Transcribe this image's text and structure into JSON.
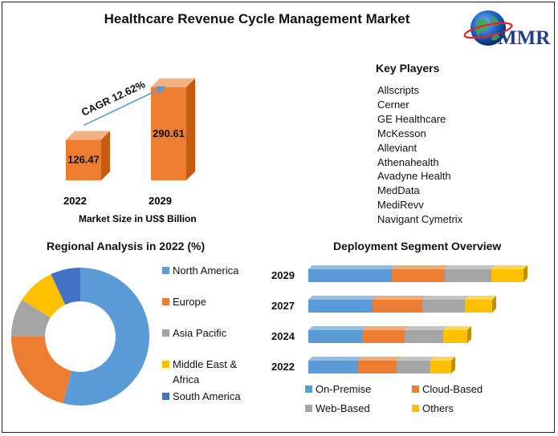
{
  "page": {
    "title": "Healthcare Revenue Cycle Management Market"
  },
  "logo": {
    "text": "MMR"
  },
  "key_players": {
    "title": "Key Players",
    "items": [
      "Allscripts",
      "Cerner",
      "GE Healthcare",
      "McKesson",
      "Alleviant",
      "Athenahealth",
      "Avadyne Health",
      "MedData",
      "MediRevv",
      "Navigant Cymetrix"
    ]
  },
  "colors": {
    "bar_orange": "#ED7D31",
    "bar_orange_dark": "#C55A11",
    "blue": "#5B9BD5",
    "orange": "#ED7D31",
    "gray": "#A5A5A5",
    "yellow": "#FFC000",
    "dark_blue": "#4472C4"
  },
  "chart_data": [
    {
      "type": "bar",
      "categories": [
        "2022",
        "2029"
      ],
      "values": [
        126.47,
        290.61
      ],
      "data_labels": [
        "126.47",
        "290.61"
      ],
      "annotation": "CAGR 12.62%",
      "xlabel": "Market Size in US$ Billion",
      "ylabel": ""
    },
    {
      "type": "pie",
      "title": "Regional Analysis in 2022 (%)",
      "categories": [
        "North America",
        "Europe",
        "Asia Pacific",
        "Middle East & Africa",
        "South America"
      ],
      "values": [
        54,
        21,
        9,
        9,
        7
      ],
      "legend_position": "right"
    },
    {
      "type": "bar",
      "orientation": "horizontal",
      "stacked": true,
      "title": "Deployment Segment Overview",
      "categories": [
        "2029",
        "2027",
        "2024",
        "2022"
      ],
      "series": [
        {
          "name": "On-Premise",
          "values": [
            104,
            80,
            67,
            62
          ]
        },
        {
          "name": "Cloud-Based",
          "values": [
            66,
            62,
            53,
            48
          ]
        },
        {
          "name": "Web-Based",
          "values": [
            58,
            53,
            48,
            42
          ]
        },
        {
          "name": "Others",
          "values": [
            40,
            34,
            30,
            26
          ]
        }
      ],
      "legend_position": "bottom"
    }
  ]
}
